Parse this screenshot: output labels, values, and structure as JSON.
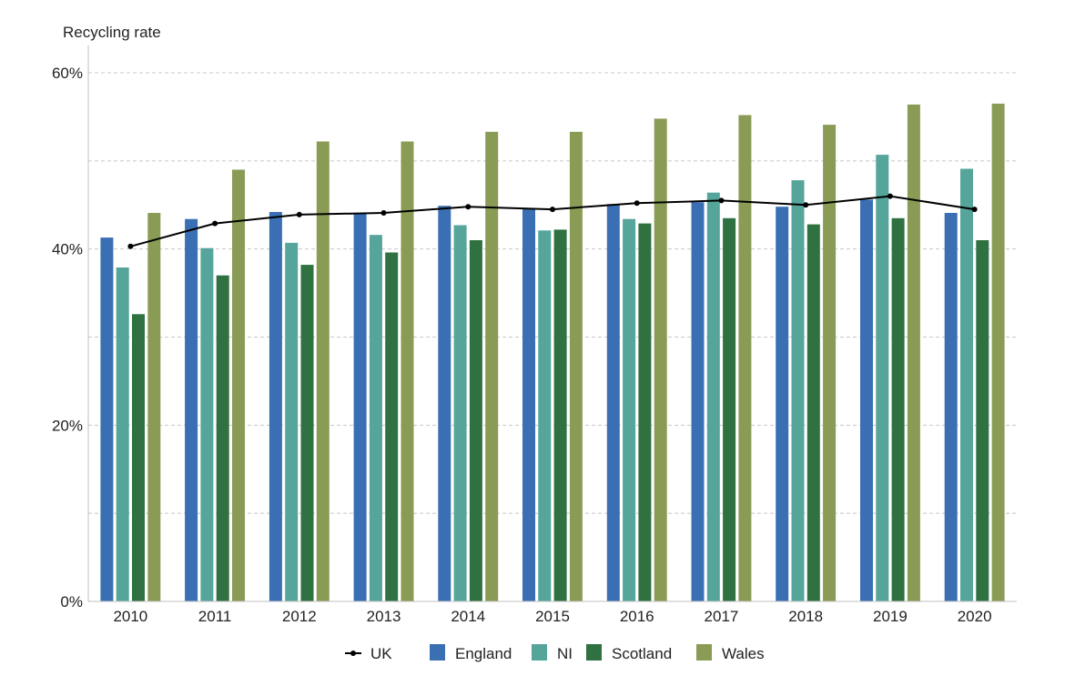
{
  "chart_data": {
    "type": "bar",
    "ylabel": "Recycling rate",
    "title": "",
    "xlabel": "",
    "ylim": [
      0,
      60
    ],
    "yticks": [
      0,
      20,
      40,
      60
    ],
    "ytick_labels": [
      "0%",
      "20%",
      "40%",
      "60%"
    ],
    "grid": true,
    "legend_position": "bottom",
    "categories": [
      "2010",
      "2011",
      "2012",
      "2013",
      "2014",
      "2015",
      "2016",
      "2017",
      "2018",
      "2019",
      "2020"
    ],
    "series": [
      {
        "name": "England",
        "color": "#3b6fb3",
        "values": [
          41.3,
          43.4,
          44.2,
          44.1,
          44.9,
          44.6,
          45.1,
          45.3,
          44.8,
          45.6,
          44.1
        ]
      },
      {
        "name": "NI",
        "color": "#55a59b",
        "values": [
          37.9,
          40.1,
          40.7,
          41.6,
          42.7,
          42.1,
          43.4,
          46.4,
          47.8,
          50.7,
          49.1
        ]
      },
      {
        "name": "Scotland",
        "color": "#2f7140",
        "values": [
          32.6,
          37.0,
          38.2,
          39.6,
          41.0,
          42.2,
          42.9,
          43.5,
          42.8,
          43.5,
          41.0
        ]
      },
      {
        "name": "Wales",
        "color": "#8a9b55",
        "values": [
          44.1,
          49.0,
          52.2,
          52.2,
          53.3,
          53.3,
          54.8,
          55.2,
          54.1,
          56.4,
          56.5
        ]
      }
    ],
    "line_series": {
      "name": "UK",
      "color": "#000000",
      "values": [
        40.3,
        42.9,
        43.9,
        44.1,
        44.8,
        44.5,
        45.2,
        45.5,
        45.0,
        46.0,
        44.5
      ]
    }
  }
}
